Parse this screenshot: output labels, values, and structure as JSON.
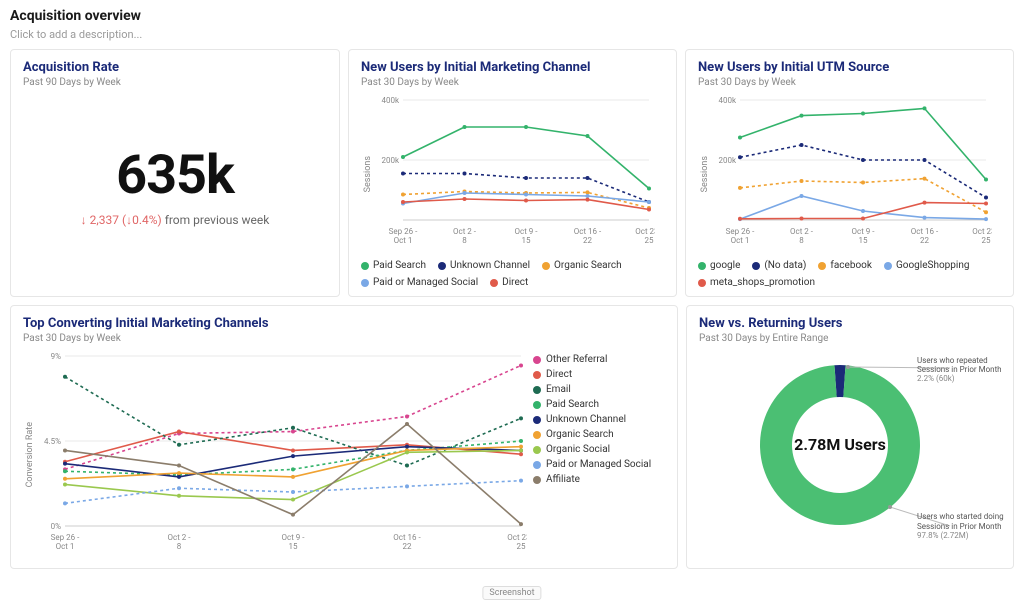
{
  "page": {
    "title": "Acquisition overview",
    "description_placeholder": "Click to add a description..."
  },
  "palette": {
    "card_border": "#e6e6e6",
    "card_title": "#1b2a78",
    "grid": "#e8e8e8",
    "axis_text": "#888888"
  },
  "cards": {
    "acq_rate": {
      "title": "Acquisition Rate",
      "sub": "Past 90 Days by Week",
      "value": "635k",
      "delta_value": "2,337",
      "delta_pct": "0.4%",
      "delta_arrow": "↓",
      "delta_suffix": "from previous week",
      "delta_color": "#e06666"
    },
    "channel": {
      "title": "New Users by Initial Marketing Channel",
      "sub": "Past 30 Days by Week",
      "type": "line",
      "ylabel": "Sessions",
      "ylim": [
        0,
        400000
      ],
      "yticks": [
        0,
        200000,
        400000
      ],
      "ytick_labels": [
        "",
        "200k",
        "400k"
      ],
      "x_labels": [
        "Sep 26 - Oct 1",
        "Oct 2 - 8",
        "Oct 9 - 15",
        "Oct 16 - 22",
        "Oct 23 - 25"
      ],
      "series": [
        {
          "name": "Paid Search",
          "color": "#33b36b",
          "dash": false,
          "values": [
            210000,
            310000,
            310000,
            280000,
            105000
          ]
        },
        {
          "name": "Unknown Channel",
          "color": "#1b2a78",
          "dash": true,
          "values": [
            155000,
            155000,
            140000,
            140000,
            60000
          ]
        },
        {
          "name": "Organic Search",
          "color": "#f0a232",
          "dash": true,
          "values": [
            85000,
            95000,
            90000,
            92000,
            40000
          ]
        },
        {
          "name": "Paid or Managed Social",
          "color": "#7aa8e6",
          "dash": false,
          "values": [
            55000,
            90000,
            85000,
            80000,
            60000
          ]
        },
        {
          "name": "Direct",
          "color": "#e05a4a",
          "dash": false,
          "values": [
            60000,
            70000,
            65000,
            68000,
            35000
          ]
        }
      ]
    },
    "utm": {
      "title": "New Users by Initial UTM Source",
      "sub": "Past 30 Days by Week",
      "type": "line",
      "ylabel": "Sessions",
      "ylim": [
        0,
        400000
      ],
      "yticks": [
        0,
        200000,
        400000
      ],
      "ytick_labels": [
        "",
        "200k",
        "400k"
      ],
      "x_labels": [
        "Sep 26 - Oct 1",
        "Oct 2 - 8",
        "Oct 9 - 15",
        "Oct 16 - 22",
        "Oct 23 - 25"
      ],
      "series": [
        {
          "name": "google",
          "color": "#33b36b",
          "dash": false,
          "values": [
            275000,
            348000,
            355000,
            372000,
            135000
          ]
        },
        {
          "name": "(No data)",
          "color": "#1b2a78",
          "dash": true,
          "values": [
            209000,
            250000,
            200000,
            200000,
            75000
          ]
        },
        {
          "name": "facebook",
          "color": "#f0a232",
          "dash": true,
          "values": [
            107000,
            130000,
            125000,
            138000,
            26000
          ]
        },
        {
          "name": "GoogleShopping",
          "color": "#7aa8e6",
          "dash": false,
          "values": [
            3000,
            80000,
            30000,
            8000,
            3000
          ]
        },
        {
          "name": "meta_shops_promotion",
          "color": "#e05a4a",
          "dash": false,
          "values": [
            4000,
            5000,
            5000,
            58000,
            55000
          ]
        }
      ]
    },
    "convert": {
      "title": "Top Converting Initial Marketing Channels",
      "sub": "Past 30 Days by Week",
      "type": "line",
      "ylabel": "Conversion Rate",
      "ylim": [
        0,
        9
      ],
      "yticks": [
        0,
        4.5,
        9
      ],
      "ytick_labels": [
        "0%",
        "4.5%",
        "9%"
      ],
      "x_labels": [
        "Sep 26 - Oct 1",
        "Oct 2 - 8",
        "Oct 9 - 15",
        "Oct 16 - 22",
        "Oct 23 - 25"
      ],
      "series": [
        {
          "name": "Other Referral",
          "color": "#d8458f",
          "dash": true,
          "values": [
            3.0,
            4.9,
            5.0,
            5.8,
            8.5
          ]
        },
        {
          "name": "Direct",
          "color": "#e05a4a",
          "dash": false,
          "values": [
            3.4,
            5.0,
            4.0,
            4.3,
            3.8
          ]
        },
        {
          "name": "Email",
          "color": "#1e6b52",
          "dash": true,
          "values": [
            7.9,
            4.3,
            5.2,
            3.2,
            5.7
          ]
        },
        {
          "name": "Paid Search",
          "color": "#33b36b",
          "dash": true,
          "values": [
            2.9,
            2.7,
            3.0,
            4.0,
            4.5
          ]
        },
        {
          "name": "Unknown Channel",
          "color": "#1b2a78",
          "dash": false,
          "values": [
            3.3,
            2.6,
            3.7,
            4.2,
            4.0
          ]
        },
        {
          "name": "Organic Search",
          "color": "#f0a232",
          "dash": false,
          "values": [
            2.5,
            2.8,
            2.6,
            4.0,
            4.2
          ]
        },
        {
          "name": "Organic Social",
          "color": "#9ac84e",
          "dash": false,
          "values": [
            2.2,
            1.6,
            1.4,
            3.9,
            4.0
          ]
        },
        {
          "name": "Paid or Managed Social",
          "color": "#7aa8e6",
          "dash": true,
          "values": [
            1.2,
            2.0,
            1.8,
            2.1,
            2.4
          ]
        },
        {
          "name": "Affiliate",
          "color": "#8b7d6b",
          "dash": false,
          "values": [
            4.0,
            3.2,
            0.6,
            5.4,
            0.1
          ]
        }
      ]
    },
    "nvr": {
      "title": "New vs. Returning Users",
      "sub": "Past 30 Days by Entire Range",
      "type": "donut",
      "center_text": "2.78M Users",
      "segments": [
        {
          "name": "Users who started doing Sessions in Prior Month",
          "color": "#4bbf73",
          "pct": 97.8,
          "count": "2.72M"
        },
        {
          "name": "Users who repeated Sessions in Prior Month",
          "color": "#1b2a78",
          "pct": 2.2,
          "count": "60k"
        }
      ]
    }
  },
  "footer_badge": "Screenshot"
}
